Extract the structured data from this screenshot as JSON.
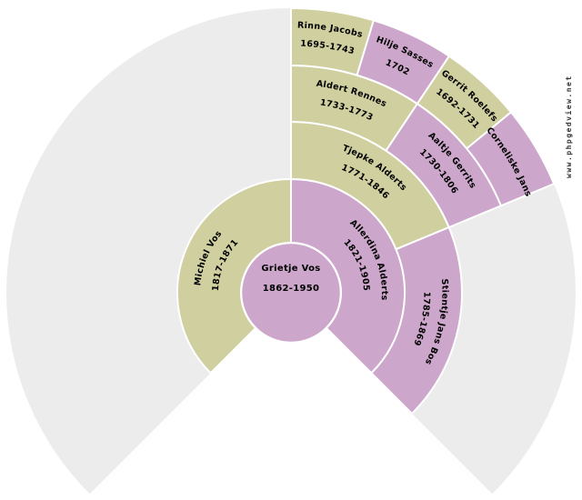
{
  "watermark": "www.phpgedview.net",
  "colors": {
    "male": "#cfcfa0",
    "female": "#cca6cb",
    "empty": "#ececec",
    "border": "#ffffff",
    "text": "#000000"
  },
  "fan": {
    "degrees": 270,
    "generations": 5
  },
  "people": [
    {
      "id": "grietje-vos",
      "ring": 0,
      "slot": 0,
      "sex": "F",
      "name": "Grietje Vos",
      "dates": "1862-1950"
    },
    {
      "id": "michiel-vos",
      "ring": 1,
      "slot": 0,
      "sex": "M",
      "name": "Michiel Vos",
      "dates": "1817-1871"
    },
    {
      "id": "allerdina-alderts",
      "ring": 1,
      "slot": 1,
      "sex": "F",
      "name": "Allerdina Alderts",
      "dates": "1821-1905"
    },
    {
      "id": "tjepke-alderts",
      "ring": 2,
      "slot": 2,
      "sex": "M",
      "name": "Tjepke Alderts",
      "dates": "1771-1846"
    },
    {
      "id": "stientje-jans-bos",
      "ring": 2,
      "slot": 3,
      "sex": "F",
      "name": "Stientje Jans Bos",
      "dates": "1785-1869"
    },
    {
      "id": "aldert-rennes",
      "ring": 3,
      "slot": 4,
      "sex": "M",
      "name": "Aldert Rennes",
      "dates": "1733-1773"
    },
    {
      "id": "aaltje-gerrits",
      "ring": 3,
      "slot": 5,
      "sex": "F",
      "name": "Aaltje Gerrits",
      "dates": "1730-1806"
    },
    {
      "id": "rinne-jacobs",
      "ring": 4,
      "slot": 8,
      "sex": "M",
      "name": "Rinne Jacobs",
      "dates": "1695-1743"
    },
    {
      "id": "hilje-sasses",
      "ring": 4,
      "slot": 9,
      "sex": "F",
      "name": "Hilje Sasses",
      "dates": "1702"
    },
    {
      "id": "gerrit-roelefs",
      "ring": 4,
      "slot": 10,
      "sex": "M",
      "name": "Gerrit Roelefs",
      "dates": "1692-1731"
    },
    {
      "id": "corneliske-jans",
      "ring": 4,
      "slot": 11,
      "sex": "F",
      "name": "Corneliske Jans",
      "dates": ""
    }
  ]
}
